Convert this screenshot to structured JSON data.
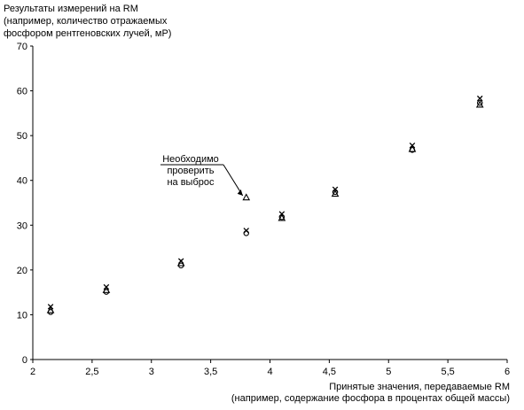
{
  "chart_data": {
    "type": "scatter",
    "title": "",
    "ylabel_lines": [
      "Результаты измерений на RM",
      "(например, количество отражаемых",
      "фосфором рентгеновских лучей, мР)"
    ],
    "xlabel_lines": [
      "Принятые значения, передаваемые RM",
      "(например, содержание фосфора в процентах общей массы)"
    ],
    "xlim": [
      2,
      6
    ],
    "ylim": [
      0,
      70
    ],
    "x_ticks": [
      "2",
      "2,5",
      "3",
      "3,5",
      "4",
      "4,5",
      "5",
      "5,5",
      "6"
    ],
    "y_ticks": [
      "0",
      "10",
      "20",
      "30",
      "40",
      "50",
      "60",
      "70"
    ],
    "grid": false,
    "series": [
      {
        "marker": "x",
        "points": [
          [
            2.15,
            11.8
          ],
          [
            2.62,
            16.2
          ],
          [
            3.25,
            22.0
          ],
          [
            3.8,
            28.8
          ],
          [
            4.1,
            32.5
          ],
          [
            4.55,
            38.0
          ],
          [
            5.2,
            47.8
          ],
          [
            5.77,
            58.3
          ]
        ]
      },
      {
        "marker": "triangle",
        "points": [
          [
            2.15,
            11.0
          ],
          [
            2.62,
            15.5
          ],
          [
            3.25,
            21.5
          ],
          [
            3.8,
            36.2
          ],
          [
            4.1,
            31.6
          ],
          [
            4.55,
            37.0
          ],
          [
            5.2,
            47.0
          ],
          [
            5.77,
            56.9
          ]
        ]
      },
      {
        "marker": "circle",
        "points": [
          [
            2.15,
            10.6
          ],
          [
            2.62,
            15.1
          ],
          [
            3.25,
            21.0
          ],
          [
            3.8,
            28.2
          ],
          [
            4.1,
            31.8
          ],
          [
            4.55,
            37.4
          ],
          [
            5.2,
            46.8
          ],
          [
            5.77,
            57.3
          ]
        ]
      }
    ],
    "annotation": {
      "lines": [
        "Необходимо",
        "проверить",
        "на выброс"
      ],
      "target": [
        3.8,
        36.2
      ]
    }
  }
}
